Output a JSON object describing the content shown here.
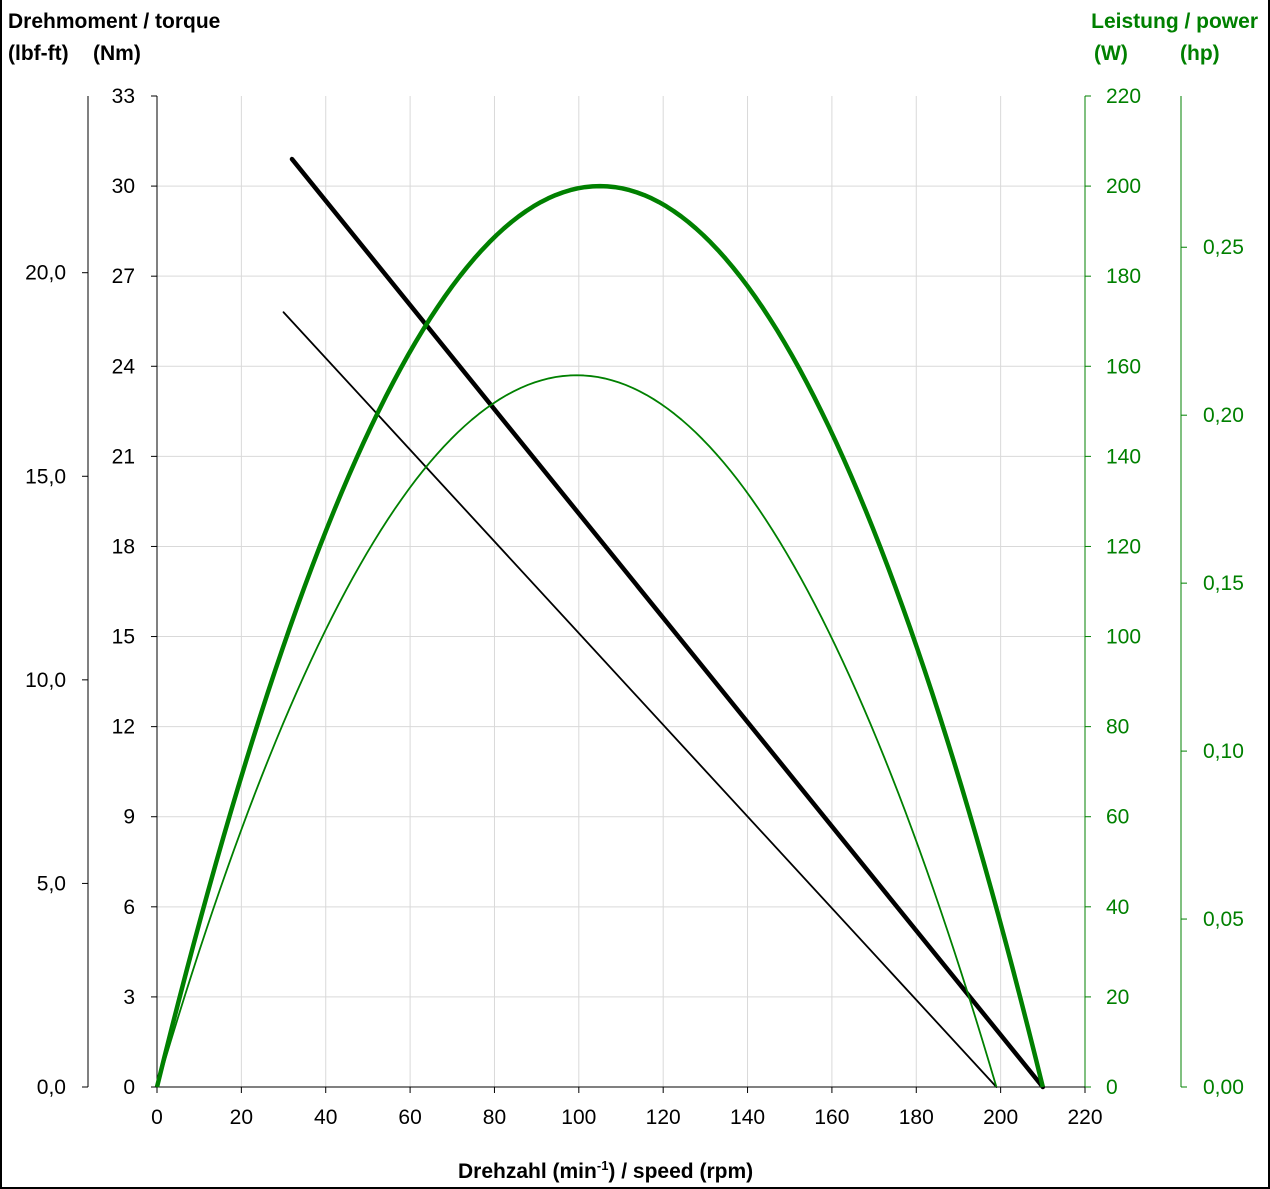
{
  "labels": {
    "left_title": "Drehmoment / torque",
    "left_unit_lbf": "(lbf-ft)",
    "left_unit_nm": "(Nm)",
    "right_title": "Leistung / power",
    "right_unit_w": "(W)",
    "right_unit_hp": "(hp)",
    "x_title_pre": "Drehzahl (min",
    "x_title_sup": "-1",
    "x_title_post": ") / speed (rpm)"
  },
  "colors": {
    "torque": "#000000",
    "power": "#008000",
    "grid": "#d9d9d9"
  },
  "chart_data": {
    "type": "line",
    "grid": true,
    "x": {
      "min": 0,
      "max": 220,
      "ticks": [
        "0",
        "20",
        "40",
        "60",
        "80",
        "100",
        "120",
        "140",
        "160",
        "180",
        "200",
        "220"
      ]
    },
    "y_nm": {
      "min": 0,
      "max": 33,
      "ticks": [
        "0",
        "3",
        "6",
        "9",
        "12",
        "15",
        "18",
        "21",
        "24",
        "27",
        "30",
        "33"
      ]
    },
    "y_lbfft": {
      "ticks": [
        {
          "label": "0,0",
          "value": 0
        },
        {
          "label": "5,0",
          "value": 5
        },
        {
          "label": "10,0",
          "value": 10
        },
        {
          "label": "15,0",
          "value": 15
        },
        {
          "label": "20,0",
          "value": 20
        }
      ]
    },
    "y_w": {
      "min": 0,
      "max": 220,
      "ticks": [
        "0",
        "20",
        "40",
        "60",
        "80",
        "100",
        "120",
        "140",
        "160",
        "180",
        "200",
        "220"
      ]
    },
    "y_hp": {
      "ticks": [
        {
          "label": "0,00",
          "value": 0
        },
        {
          "label": "0,05",
          "value": 0.05
        },
        {
          "label": "0,10",
          "value": 0.1
        },
        {
          "label": "0,15",
          "value": 0.15
        },
        {
          "label": "0,20",
          "value": 0.2
        },
        {
          "label": "0,25",
          "value": 0.25
        }
      ]
    },
    "series": [
      {
        "kind": "torque",
        "axis": "Nm",
        "weight": "bold",
        "points": [
          [
            32,
            30.9
          ],
          [
            210,
            0
          ]
        ]
      },
      {
        "kind": "torque",
        "axis": "Nm",
        "weight": "thin",
        "points": [
          [
            30,
            25.8
          ],
          [
            199,
            0
          ]
        ]
      },
      {
        "kind": "power",
        "axis": "W",
        "weight": "bold",
        "peak_x": 105,
        "peak_y": 200,
        "end_x": 210
      },
      {
        "kind": "power",
        "axis": "W",
        "weight": "thin",
        "peak_x": 100,
        "peak_y": 158,
        "end_x": 199
      }
    ]
  }
}
